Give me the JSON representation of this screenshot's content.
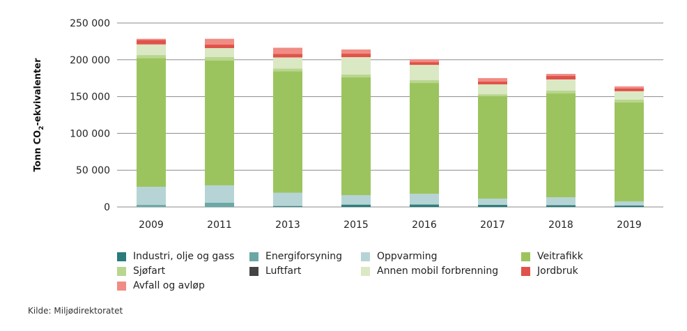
{
  "chart_data": {
    "type": "bar",
    "stacked": true,
    "title": "",
    "xlabel": "",
    "ylabel": "Tonn CO2-ekvivalenter",
    "ylim": [
      0,
      250000
    ],
    "yticks": [
      0,
      50000,
      100000,
      150000,
      200000,
      250000
    ],
    "ytick_labels": [
      "0",
      "50 000",
      "100 000",
      "150 000",
      "200 000",
      "250 000"
    ],
    "grid": true,
    "legend_position": "bottom",
    "categories": [
      "2009",
      "2011",
      "2013",
      "2015",
      "2016",
      "2017",
      "2018",
      "2019"
    ],
    "series": [
      {
        "name": "Industri, olje og gass",
        "color": "#2a7b7b",
        "values": [
          0,
          0,
          900,
          2800,
          2800,
          2800,
          1900,
          1900
        ]
      },
      {
        "name": "Energiforsyning",
        "color": "#6aa8a6",
        "values": [
          2800,
          5700,
          500,
          500,
          900,
          0,
          900,
          0
        ]
      },
      {
        "name": "Oppvarming",
        "color": "#b6d4d6",
        "values": [
          24600,
          23700,
          18000,
          12800,
          14200,
          8500,
          10400,
          5700
        ]
      },
      {
        "name": "Veitrafikk",
        "color": "#9cc45e",
        "values": [
          174900,
          169800,
          164800,
          160000,
          150600,
          139200,
          141100,
          134500
        ]
      },
      {
        "name": "Sjøfart",
        "color": "#b9d68f",
        "values": [
          4100,
          4400,
          3800,
          3800,
          3800,
          2800,
          3800,
          3800
        ]
      },
      {
        "name": "Luftfart",
        "color": "#444444",
        "values": [
          0,
          0,
          0,
          0,
          0,
          0,
          0,
          0
        ]
      },
      {
        "name": "Annen mobil forbrenning",
        "color": "#dbe8c4",
        "values": [
          14500,
          12300,
          15200,
          23700,
          20800,
          13300,
          15200,
          11400
        ]
      },
      {
        "name": "Jordbruk",
        "color": "#e0524a",
        "values": [
          6100,
          4700,
          4700,
          4700,
          3800,
          3800,
          4700,
          3800
        ]
      },
      {
        "name": "Avfall og avløp",
        "color": "#f08c84",
        "values": [
          1500,
          7900,
          8500,
          5700,
          3800,
          4700,
          2800,
          2800
        ]
      }
    ],
    "legend_order": [
      "Industri, olje og gass",
      "Energiforsyning",
      "Oppvarming",
      "Veitrafikk",
      "Sjøfart",
      "Luftfart",
      "Annen mobil forbrenning",
      "Jordbruk",
      "Avfall og avløp"
    ]
  },
  "ylabel_parts": {
    "main": "Tonn CO",
    "sub": "2",
    "rest": "-ekvivalenter"
  },
  "source": "Kilde: Miljødirektoratet"
}
